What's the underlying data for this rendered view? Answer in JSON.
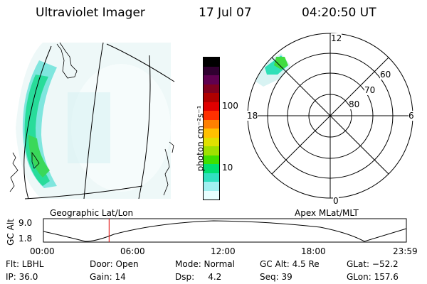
{
  "header": {
    "instrument": "Ultraviolet Imager",
    "date": "17 Jul 07",
    "time": "04:20:50 UT"
  },
  "colorbar": {
    "label": "photon cm⁻²s⁻¹",
    "ticks": [
      "100",
      "10"
    ],
    "colors": [
      "#e8ffff",
      "#a0f0f0",
      "#30e0c0",
      "#00e070",
      "#40e000",
      "#a0e000",
      "#e0e000",
      "#ffc000",
      "#ff8000",
      "#ff3000",
      "#e00000",
      "#b00000",
      "#800020",
      "#600050",
      "#300030",
      "#000000"
    ]
  },
  "polar_plot": {
    "mlt_labels": [
      "12",
      "18",
      "6",
      "0"
    ],
    "lat_labels": [
      "60",
      "70",
      "80"
    ]
  },
  "strip_chart": {
    "left_title": "Geographic Lat/Lon",
    "right_title": "Apex MLat/MLT",
    "ylabel": "GC Alt",
    "y_ticks": [
      "9.0",
      "1.8"
    ],
    "x_ticks": [
      "00:00",
      "06:00",
      "12:00",
      "18:00",
      "23:59"
    ],
    "current_time_fraction": 0.181,
    "marker_color": "#e00000"
  },
  "info": {
    "row1": [
      "Flt: LBHL",
      "Door: Open",
      "Mode: Normal",
      "GC Alt: 4.5 Re",
      "GLat: −52.2"
    ],
    "row2": [
      "IP: 36.0",
      "Gain: 14",
      "Dsp:     4.2",
      "Seq: 39",
      "GLon: 157.6"
    ]
  }
}
